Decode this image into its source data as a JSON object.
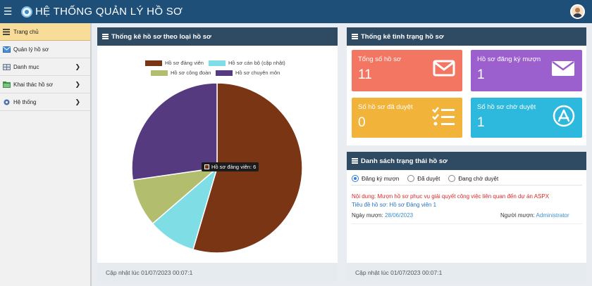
{
  "header": {
    "title": "HỆ THỐNG QUẢN LÝ HỒ SƠ"
  },
  "sidebar": {
    "items": [
      {
        "label": "Trang chủ"
      },
      {
        "label": "Quản lý hồ sơ"
      },
      {
        "label": "Danh mục"
      },
      {
        "label": "Khai thác hồ sơ"
      },
      {
        "label": "Hệ thống"
      }
    ]
  },
  "left_panel": {
    "title": "Thống kê hồ sơ theo loại hồ sơ",
    "footer": "Cập nhật lúc 01/07/2023 00:07:1",
    "tooltip": "Hồ sơ đảng viên: 6"
  },
  "chart_data": {
    "type": "pie",
    "categories": [
      "Hồ sơ đảng viên",
      "Hồ sơ cán bộ (cập nhật)",
      "Hồ sơ công đoàn",
      "Hồ sơ chuyên môn"
    ],
    "values": [
      6,
      1,
      1,
      3
    ],
    "colors": [
      "#7a3515",
      "#7fdde6",
      "#b3bd6e",
      "#553a80"
    ],
    "legend_position": "top"
  },
  "status_panel": {
    "title": "Thống kê tình trạng hồ sơ",
    "cards": [
      {
        "label": "Tổng số hồ sơ",
        "value": "11",
        "color": "#f27662",
        "icon": "envelope-icon"
      },
      {
        "label": "Hồ sơ đăng ký mượn",
        "value": "1",
        "color": "#9b5fce",
        "icon": "envelope-filled-icon"
      },
      {
        "label": "Số hồ sơ đã duyệt",
        "value": "0",
        "color": "#f2b33a",
        "icon": "checklist-icon"
      },
      {
        "label": "Số hồ sơ chờ duyệt",
        "value": "1",
        "color": "#2db9dd",
        "icon": "app-store-icon"
      }
    ]
  },
  "list_panel": {
    "title": "Danh sách trạng thái hồ sơ",
    "filters": [
      "Đăng ký mượn",
      "Đã duyệt",
      "Đang chờ duyệt"
    ],
    "selected": "Đăng ký mượn",
    "record": {
      "content_label": "Nội dung:",
      "content": "Mượn hồ sơ phục vụ giải quyết công việc liên quan đến dự án ASPX",
      "title_label": "Tiêu đề hồ sơ:",
      "title": "Hồ sơ Đảng viên 1",
      "date_label": "Ngày mượn:",
      "date": "28/06/2023",
      "borrower_label": "Người mượn:",
      "borrower": "Administrator"
    },
    "footer": "Cập nhật lúc 01/07/2023 00:07:1"
  }
}
